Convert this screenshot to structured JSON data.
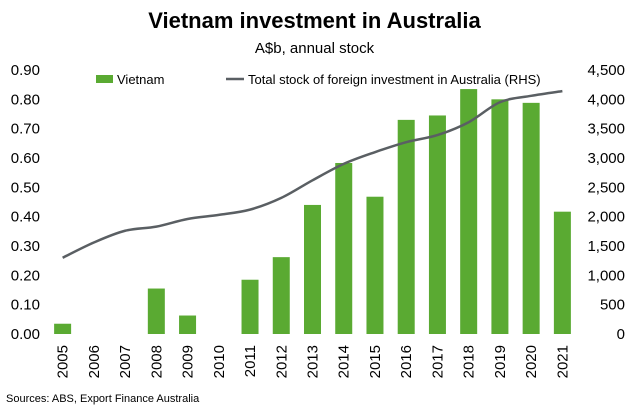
{
  "chart_data": {
    "type": "bar",
    "title": "Vietnam investment in Australia",
    "subtitle": "A$b, annual stock",
    "source": "Sources: ABS, Export Finance Australia",
    "categories": [
      "2005",
      "2006",
      "2007",
      "2008",
      "2009",
      "2010",
      "2011",
      "2012",
      "2013",
      "2014",
      "2015",
      "2016",
      "2017",
      "2018",
      "2019",
      "2020",
      "2021"
    ],
    "series": [
      {
        "name": "Vietnam",
        "type": "bar",
        "axis": "left",
        "color": "#5aaa32",
        "values": [
          0.035,
          0,
          0,
          0.155,
          0.063,
          0,
          0.185,
          0.262,
          0.44,
          0.583,
          0.468,
          0.73,
          0.745,
          0.835,
          0.8,
          0.788,
          0.417
        ]
      },
      {
        "name": "Total stock of foreign investment in Australia (RHS)",
        "type": "line",
        "axis": "right",
        "color": "#5a5f63",
        "values": [
          1300,
          1560,
          1760,
          1830,
          1960,
          2030,
          2120,
          2320,
          2620,
          2900,
          3100,
          3270,
          3390,
          3610,
          3950,
          4060,
          4140
        ]
      }
    ],
    "y_left": {
      "ylim": [
        0,
        0.9
      ],
      "ticks": [
        "0.00",
        "0.10",
        "0.20",
        "0.30",
        "0.40",
        "0.50",
        "0.60",
        "0.70",
        "0.80",
        "0.90"
      ]
    },
    "y_right": {
      "ylim": [
        0,
        4500
      ],
      "ticks": [
        "0",
        "500",
        "1,000",
        "1,500",
        "2,000",
        "2,500",
        "3,000",
        "3,500",
        "4,000",
        "4,500"
      ]
    },
    "legend_position": "top",
    "grid": false
  }
}
